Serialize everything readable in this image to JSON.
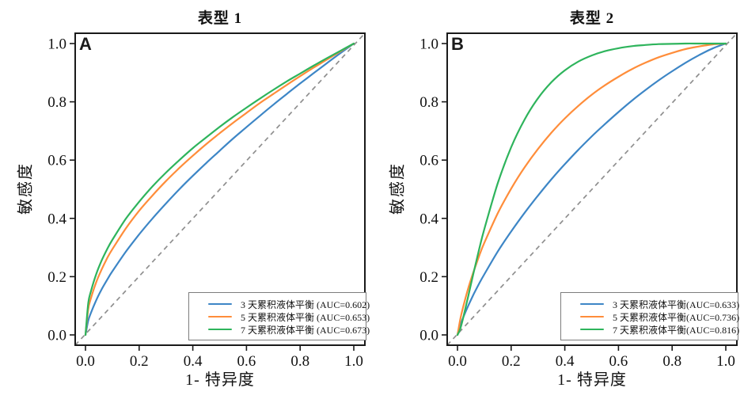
{
  "figure": {
    "background": "#ffffff",
    "axis_color": "#1a1a1a",
    "tick_color": "#1a1a1a",
    "diagonal_color": "#8f8f8f",
    "legend_border_color": "#7d7d7d",
    "series_colors": {
      "blue": "#3d86c6",
      "orange": "#ff8d3a",
      "green": "#2eb45c"
    }
  },
  "chart_data": [
    {
      "type": "line",
      "panel_label": "A",
      "title": "表型 1",
      "xlabel": "1- 特异度",
      "ylabel": "敏感度",
      "xlim": [
        -0.04,
        1.04
      ],
      "ylim": [
        -0.04,
        1.04
      ],
      "xtick_labels": [
        "0.0",
        "0.2",
        "0.4",
        "0.6",
        "0.8",
        "1.0"
      ],
      "ytick_labels": [
        "0.0",
        "0.2",
        "0.4",
        "0.6",
        "0.8",
        "1.0"
      ],
      "grid": false,
      "legend_position": "lower-right",
      "reference_line": {
        "style": "dashed",
        "from": [
          0,
          0
        ],
        "to": [
          1,
          1
        ]
      },
      "series": [
        {
          "name": "3 天累积液体平衡 (AUC=0.602)",
          "auc": 0.602,
          "color": "#3d86c6",
          "x": [
            0,
            0.01,
            0.02,
            0.04,
            0.06,
            0.08,
            0.1,
            0.15,
            0.2,
            0.25,
            0.3,
            0.35,
            0.4,
            0.45,
            0.5,
            0.55,
            0.6,
            0.65,
            0.7,
            0.75,
            0.8,
            0.85,
            0.9,
            0.95,
            1
          ],
          "y": [
            0,
            0.048,
            0.075,
            0.119,
            0.156,
            0.188,
            0.218,
            0.285,
            0.345,
            0.4,
            0.451,
            0.5,
            0.546,
            0.59,
            0.632,
            0.674,
            0.713,
            0.752,
            0.79,
            0.827,
            0.863,
            0.898,
            0.933,
            0.967,
            1
          ]
        },
        {
          "name": "5 天累积液体平衡 (AUC=0.653)",
          "auc": 0.653,
          "color": "#ff8d3a",
          "x": [
            0,
            0.01,
            0.02,
            0.04,
            0.06,
            0.08,
            0.1,
            0.15,
            0.2,
            0.25,
            0.3,
            0.35,
            0.4,
            0.45,
            0.5,
            0.55,
            0.6,
            0.65,
            0.7,
            0.75,
            0.8,
            0.85,
            0.9,
            0.95,
            1
          ],
          "y": [
            0,
            0.087,
            0.125,
            0.181,
            0.224,
            0.262,
            0.294,
            0.365,
            0.426,
            0.479,
            0.528,
            0.573,
            0.615,
            0.655,
            0.692,
            0.728,
            0.762,
            0.796,
            0.827,
            0.858,
            0.888,
            0.917,
            0.945,
            0.973,
            1
          ]
        },
        {
          "name": "7 天累积液体平衡 (AUC=0.673)",
          "auc": 0.673,
          "color": "#2eb45c",
          "x": [
            0,
            0.01,
            0.02,
            0.04,
            0.06,
            0.08,
            0.1,
            0.15,
            0.2,
            0.25,
            0.3,
            0.35,
            0.4,
            0.45,
            0.5,
            0.55,
            0.6,
            0.65,
            0.7,
            0.75,
            0.8,
            0.85,
            0.9,
            0.95,
            1
          ],
          "y": [
            0,
            0.107,
            0.149,
            0.209,
            0.255,
            0.293,
            0.326,
            0.398,
            0.457,
            0.51,
            0.557,
            0.6,
            0.641,
            0.678,
            0.714,
            0.748,
            0.78,
            0.811,
            0.841,
            0.87,
            0.897,
            0.924,
            0.95,
            0.975,
            1
          ]
        }
      ]
    },
    {
      "type": "line",
      "panel_label": "B",
      "title": "表型 2",
      "xlabel": "1- 特异度",
      "ylabel": "敏感度",
      "xlim": [
        -0.04,
        1.04
      ],
      "ylim": [
        -0.04,
        1.04
      ],
      "xtick_labels": [
        "0.0",
        "0.2",
        "0.4",
        "0.6",
        "0.8",
        "1.0"
      ],
      "ytick_labels": [
        "0.0",
        "0.2",
        "0.4",
        "0.6",
        "0.8",
        "1.0"
      ],
      "grid": false,
      "legend_position": "lower-right",
      "reference_line": {
        "style": "dashed",
        "from": [
          0,
          0
        ],
        "to": [
          1,
          1
        ]
      },
      "series": [
        {
          "name": "3 天累积液体平衡(AUC=0.633)",
          "auc": 0.633,
          "color": "#3d86c6",
          "x": [
            0,
            0.01,
            0.02,
            0.04,
            0.06,
            0.08,
            0.1,
            0.15,
            0.2,
            0.25,
            0.3,
            0.35,
            0.4,
            0.45,
            0.5,
            0.55,
            0.6,
            0.65,
            0.7,
            0.75,
            0.8,
            0.85,
            0.9,
            0.95,
            1
          ],
          "y": [
            0,
            0.032,
            0.057,
            0.1,
            0.139,
            0.175,
            0.208,
            0.286,
            0.355,
            0.419,
            0.478,
            0.534,
            0.586,
            0.635,
            0.681,
            0.724,
            0.765,
            0.804,
            0.84,
            0.874,
            0.905,
            0.934,
            0.96,
            0.983,
            1
          ]
        },
        {
          "name": "5 天累积液体平衡(AUC=0.736)",
          "auc": 0.736,
          "color": "#ff8d3a",
          "x": [
            0,
            0.01,
            0.02,
            0.04,
            0.06,
            0.08,
            0.1,
            0.15,
            0.2,
            0.25,
            0.3,
            0.35,
            0.4,
            0.45,
            0.5,
            0.55,
            0.6,
            0.65,
            0.7,
            0.75,
            0.8,
            0.85,
            0.9,
            0.95,
            1
          ],
          "y": [
            0,
            0.052,
            0.092,
            0.16,
            0.217,
            0.269,
            0.316,
            0.417,
            0.502,
            0.575,
            0.638,
            0.694,
            0.743,
            0.786,
            0.824,
            0.857,
            0.886,
            0.912,
            0.934,
            0.953,
            0.968,
            0.981,
            0.99,
            0.997,
            1
          ]
        },
        {
          "name": "7 天累积液体平衡(AUC=0.816)",
          "auc": 0.816,
          "color": "#2eb45c",
          "x": [
            0,
            0.01,
            0.02,
            0.04,
            0.06,
            0.08,
            0.1,
            0.15,
            0.2,
            0.25,
            0.3,
            0.35,
            0.4,
            0.45,
            0.5,
            0.55,
            0.6,
            0.65,
            0.7,
            0.75,
            0.8,
            0.85,
            0.9,
            0.95,
            1
          ],
          "y": [
            0,
            0.02,
            0.054,
            0.133,
            0.213,
            0.291,
            0.363,
            0.52,
            0.644,
            0.739,
            0.812,
            0.867,
            0.908,
            0.938,
            0.959,
            0.974,
            0.984,
            0.991,
            0.995,
            0.998,
            0.999,
            1,
            1,
            1,
            1
          ]
        }
      ]
    }
  ]
}
